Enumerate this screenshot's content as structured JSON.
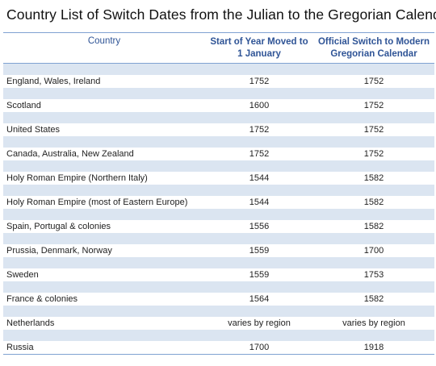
{
  "title": "Country List of Switch Dates from the Julian to the Gregorian Calendar",
  "headers": {
    "country": "Country",
    "start_of_year": "Start of Year Moved to 1 January",
    "official_switch": "Official Switch to Modern Gregorian Calendar"
  },
  "rows": [
    {
      "country": "England, Wales, Ireland",
      "start": "1752",
      "switch": "1752"
    },
    {
      "country": "Scotland",
      "start": "1600",
      "switch": "1752"
    },
    {
      "country": "United States",
      "start": "1752",
      "switch": "1752"
    },
    {
      "country": "Canada, Australia, New Zealand",
      "start": "1752",
      "switch": "1752"
    },
    {
      "country": "Holy Roman Empire (Northern Italy)",
      "start": "1544",
      "switch": "1582"
    },
    {
      "country": "Holy Roman Empire (most of Eastern Europe)",
      "start": "1544",
      "switch": "1582"
    },
    {
      "country": "Spain, Portugal & colonies",
      "start": "1556",
      "switch": "1582"
    },
    {
      "country": "Prussia, Denmark, Norway",
      "start": "1559",
      "switch": "1700"
    },
    {
      "country": "Sweden",
      "start": "1559",
      "switch": "1753"
    },
    {
      "country": "France & colonies",
      "start": "1564",
      "switch": "1582"
    },
    {
      "country": "Netherlands",
      "start": "varies by region",
      "switch": "varies by region"
    },
    {
      "country": "Russia",
      "start": "1700",
      "switch": "1918"
    }
  ],
  "colors": {
    "header_text": "#2f5496",
    "band": "#dbe5f1",
    "rule": "#7fa2d1"
  }
}
